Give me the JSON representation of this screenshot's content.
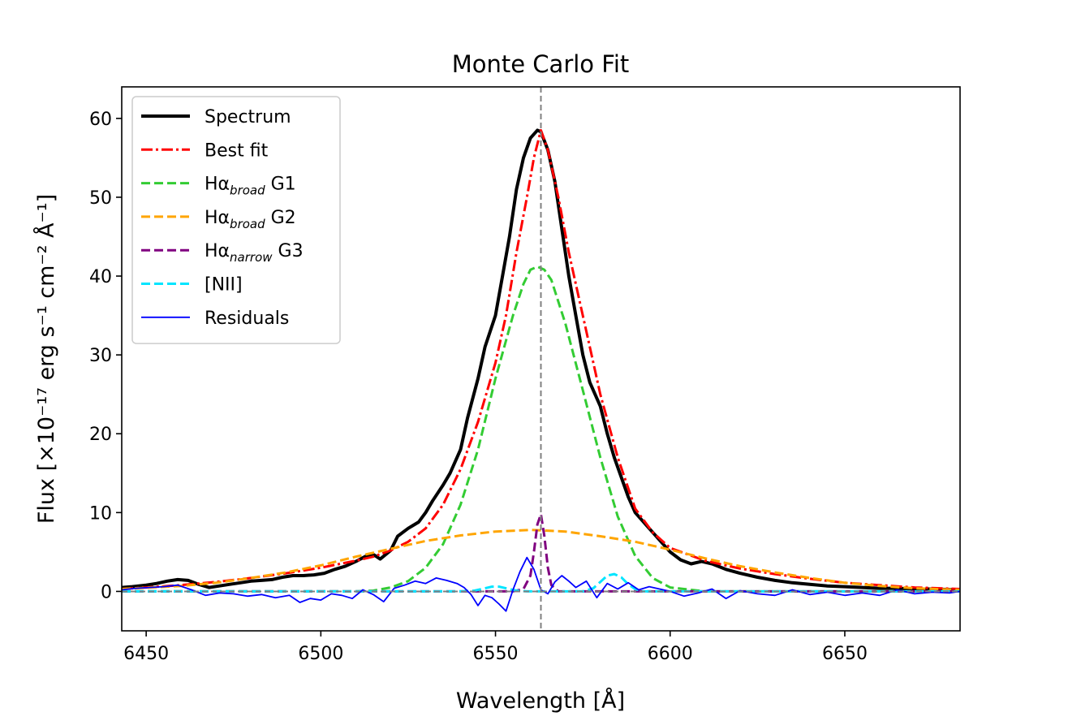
{
  "chart_data": {
    "type": "line",
    "title": "Monte Carlo Fit",
    "xlabel": "Wavelength [Å]",
    "ylabel": "Flux [×10⁻¹⁷ erg s⁻¹ cm⁻² Å⁻¹]",
    "xlim": [
      6443,
      6683
    ],
    "ylim": [
      -5,
      64
    ],
    "xticks": [
      6450,
      6500,
      6550,
      6600,
      6650
    ],
    "yticks": [
      0,
      10,
      20,
      30,
      40,
      50,
      60
    ],
    "xtick_labels": [
      "6450",
      "6500",
      "6550",
      "6600",
      "6650"
    ],
    "ytick_labels": [
      "0",
      "10",
      "20",
      "30",
      "40",
      "50",
      "60"
    ],
    "vline": {
      "x": 6563,
      "color": "#808080",
      "style": "dashed"
    },
    "hline": {
      "y": 0,
      "color": "#808080",
      "style": "dashed"
    },
    "legend": {
      "position": "upper-left",
      "entries": [
        {
          "label": "Spectrum",
          "base": "Spectrum",
          "sub": "",
          "suffix": ""
        },
        {
          "label": "Best fit",
          "base": "Best fit",
          "sub": "",
          "suffix": ""
        },
        {
          "label": "Hα broad G1",
          "base": "Hα",
          "sub": "broad",
          "suffix": " G1"
        },
        {
          "label": "Hα broad G2",
          "base": "Hα",
          "sub": "broad",
          "suffix": " G2"
        },
        {
          "label": "Hα narrow G3",
          "base": "Hα",
          "sub": "narrow",
          "suffix": " G3"
        },
        {
          "label": "[NII]",
          "base": "[NII]",
          "sub": "",
          "suffix": ""
        },
        {
          "label": "Residuals",
          "base": "Residuals",
          "sub": "",
          "suffix": ""
        }
      ]
    },
    "series": [
      {
        "name": "Spectrum",
        "color": "#000000",
        "style": "solid",
        "width": 4,
        "x": [
          6443,
          6446,
          6450,
          6453,
          6456,
          6459,
          6462,
          6465,
          6468,
          6471,
          6474,
          6477,
          6480,
          6483,
          6486,
          6489,
          6492,
          6495,
          6498,
          6501,
          6504,
          6507,
          6510,
          6513,
          6515,
          6517,
          6520,
          6522,
          6525,
          6528,
          6530,
          6532,
          6535,
          6537,
          6540,
          6542,
          6545,
          6547,
          6550,
          6552,
          6554,
          6556,
          6558,
          6560,
          6562,
          6563,
          6565,
          6567,
          6569,
          6571,
          6573,
          6575,
          6577,
          6580,
          6582,
          6584,
          6586,
          6588,
          6590,
          6592,
          6594,
          6597,
          6600,
          6603,
          6606,
          6609,
          6612,
          6616,
          6620,
          6625,
          6630,
          6635,
          6640,
          6645,
          6650,
          6655,
          6660,
          6665,
          6670,
          6675,
          6683
        ],
        "y": [
          0.5,
          0.6,
          0.8,
          1.0,
          1.3,
          1.5,
          1.4,
          0.9,
          0.5,
          0.7,
          0.9,
          1.1,
          1.3,
          1.4,
          1.5,
          1.8,
          2.0,
          2.0,
          2.1,
          2.3,
          2.8,
          3.2,
          3.8,
          4.5,
          4.7,
          4.1,
          5.2,
          7.0,
          8.0,
          8.8,
          10.0,
          11.5,
          13.5,
          15.0,
          18.0,
          22.0,
          27.0,
          31.0,
          35.0,
          40.0,
          45.0,
          51.0,
          55.0,
          57.5,
          58.5,
          58.3,
          56.0,
          52.0,
          46.0,
          40.0,
          35.0,
          30.0,
          26.5,
          23.5,
          20.0,
          17.0,
          14.5,
          12.0,
          10.0,
          9.0,
          8.0,
          6.5,
          5.0,
          4.0,
          3.5,
          3.8,
          3.5,
          2.8,
          2.3,
          1.8,
          1.4,
          1.1,
          0.9,
          0.7,
          0.6,
          0.5,
          0.4,
          0.4,
          0.3,
          0.3,
          0.2
        ]
      },
      {
        "name": "Best fit",
        "color": "#ff0000",
        "style": "dashdot",
        "width": 3,
        "x": [
          6443,
          6450,
          6460,
          6470,
          6480,
          6490,
          6500,
          6510,
          6515,
          6520,
          6525,
          6530,
          6535,
          6540,
          6545,
          6550,
          6553,
          6556,
          6559,
          6561,
          6563,
          6565,
          6568,
          6571,
          6574,
          6577,
          6580,
          6585,
          6590,
          6595,
          6600,
          6610,
          6620,
          6630,
          6640,
          6650,
          6660,
          6670,
          6683
        ],
        "y": [
          0.3,
          0.5,
          0.8,
          1.2,
          1.7,
          2.3,
          3.0,
          3.9,
          4.4,
          5.2,
          6.3,
          8.0,
          11.0,
          15.5,
          21.5,
          29.0,
          35.0,
          43.0,
          50.0,
          55.0,
          58.5,
          56.0,
          50.0,
          43.0,
          37.0,
          31.0,
          25.0,
          17.0,
          10.5,
          7.5,
          5.5,
          3.9,
          2.9,
          2.2,
          1.6,
          1.1,
          0.8,
          0.5,
          0.3
        ]
      },
      {
        "name": "Hα broad G1",
        "color": "#33cc33",
        "style": "dashed",
        "width": 3,
        "x": [
          6443,
          6480,
          6500,
          6510,
          6515,
          6520,
          6525,
          6530,
          6535,
          6540,
          6545,
          6550,
          6555,
          6558,
          6560,
          6562,
          6564,
          6566,
          6570,
          6575,
          6580,
          6585,
          6590,
          6595,
          6600,
          6610,
          6625,
          6683
        ],
        "y": [
          0.0,
          0.0,
          0.0,
          0.0,
          0.1,
          0.5,
          1.3,
          3.0,
          6.0,
          11.0,
          18.0,
          27.0,
          35.0,
          39.0,
          40.8,
          41.2,
          40.8,
          39.5,
          34.0,
          25.5,
          17.0,
          9.5,
          4.5,
          1.7,
          0.5,
          0.0,
          0.0,
          0.0
        ]
      },
      {
        "name": "Hα broad G2",
        "color": "#ffa500",
        "style": "dashed",
        "width": 3,
        "x": [
          6443,
          6460,
          6470,
          6480,
          6490,
          6500,
          6510,
          6520,
          6530,
          6540,
          6550,
          6560,
          6570,
          6580,
          6590,
          6600,
          6610,
          6620,
          6630,
          6640,
          6650,
          6660,
          6670,
          6683
        ],
        "y": [
          0.3,
          0.7,
          1.1,
          1.7,
          2.4,
          3.3,
          4.4,
          5.4,
          6.4,
          7.1,
          7.6,
          7.8,
          7.6,
          7.0,
          6.3,
          5.3,
          4.2,
          3.2,
          2.4,
          1.7,
          1.1,
          0.7,
          0.4,
          0.2
        ]
      },
      {
        "name": "Hα narrow G3",
        "color": "#800080",
        "style": "dashed",
        "width": 3,
        "x": [
          6443,
          6555,
          6558,
          6560,
          6561,
          6562,
          6563,
          6564,
          6565,
          6566,
          6568,
          6683
        ],
        "y": [
          0.0,
          0.0,
          0.3,
          2.0,
          5.0,
          8.5,
          9.8,
          7.0,
          3.0,
          0.8,
          0.0,
          0.0
        ]
      },
      {
        "name": "[NII]",
        "color": "#00e5ff",
        "style": "dashed",
        "width": 3,
        "x": [
          6443,
          6540,
          6544,
          6547,
          6549,
          6551,
          6553,
          6556,
          6559,
          6575,
          6578,
          6580,
          6582,
          6584,
          6586,
          6588,
          6590,
          6592,
          6683
        ],
        "y": [
          0.0,
          0.0,
          0.1,
          0.4,
          0.6,
          0.6,
          0.4,
          0.1,
          0.0,
          0.0,
          0.4,
          1.2,
          2.0,
          2.2,
          1.8,
          0.9,
          0.3,
          0.0,
          0.0
        ]
      },
      {
        "name": "Residuals",
        "color": "#0000ff",
        "style": "solid",
        "width": 1.8,
        "x": [
          6443,
          6447,
          6451,
          6455,
          6459,
          6463,
          6467,
          6471,
          6475,
          6479,
          6483,
          6487,
          6491,
          6494,
          6497,
          6500,
          6503,
          6506,
          6509,
          6512,
          6515,
          6518,
          6521,
          6524,
          6527,
          6530,
          6533,
          6536,
          6539,
          6541,
          6543,
          6545,
          6547,
          6549,
          6551,
          6553,
          6555,
          6557,
          6559,
          6561,
          6563,
          6565,
          6567,
          6569,
          6571,
          6573,
          6576,
          6579,
          6582,
          6585,
          6588,
          6591,
          6594,
          6597,
          6600,
          6604,
          6608,
          6612,
          6616,
          6620,
          6625,
          6630,
          6635,
          6640,
          6645,
          6650,
          6655,
          6660,
          6665,
          6670,
          6675,
          6680,
          6683
        ],
        "y": [
          0.2,
          0.4,
          0.5,
          0.6,
          0.8,
          0.2,
          -0.5,
          -0.2,
          -0.3,
          -0.6,
          -0.4,
          -0.8,
          -0.5,
          -1.4,
          -0.9,
          -1.1,
          -0.3,
          -0.5,
          -0.9,
          0.2,
          -0.4,
          -1.3,
          0.4,
          0.8,
          1.3,
          1.0,
          1.7,
          1.4,
          1.0,
          0.5,
          -0.4,
          -1.8,
          -0.5,
          -0.8,
          -1.6,
          -2.5,
          0.2,
          2.5,
          4.3,
          2.8,
          0.2,
          -0.3,
          1.2,
          2.0,
          1.3,
          0.5,
          1.3,
          -0.8,
          1.0,
          0.3,
          1.1,
          0.2,
          0.6,
          0.3,
          0.0,
          -0.6,
          -0.2,
          0.3,
          -0.9,
          0.1,
          -0.3,
          -0.5,
          0.2,
          -0.4,
          -0.1,
          -0.5,
          -0.2,
          -0.5,
          0.2,
          -0.3,
          -0.1,
          -0.2,
          0.0
        ]
      }
    ]
  }
}
